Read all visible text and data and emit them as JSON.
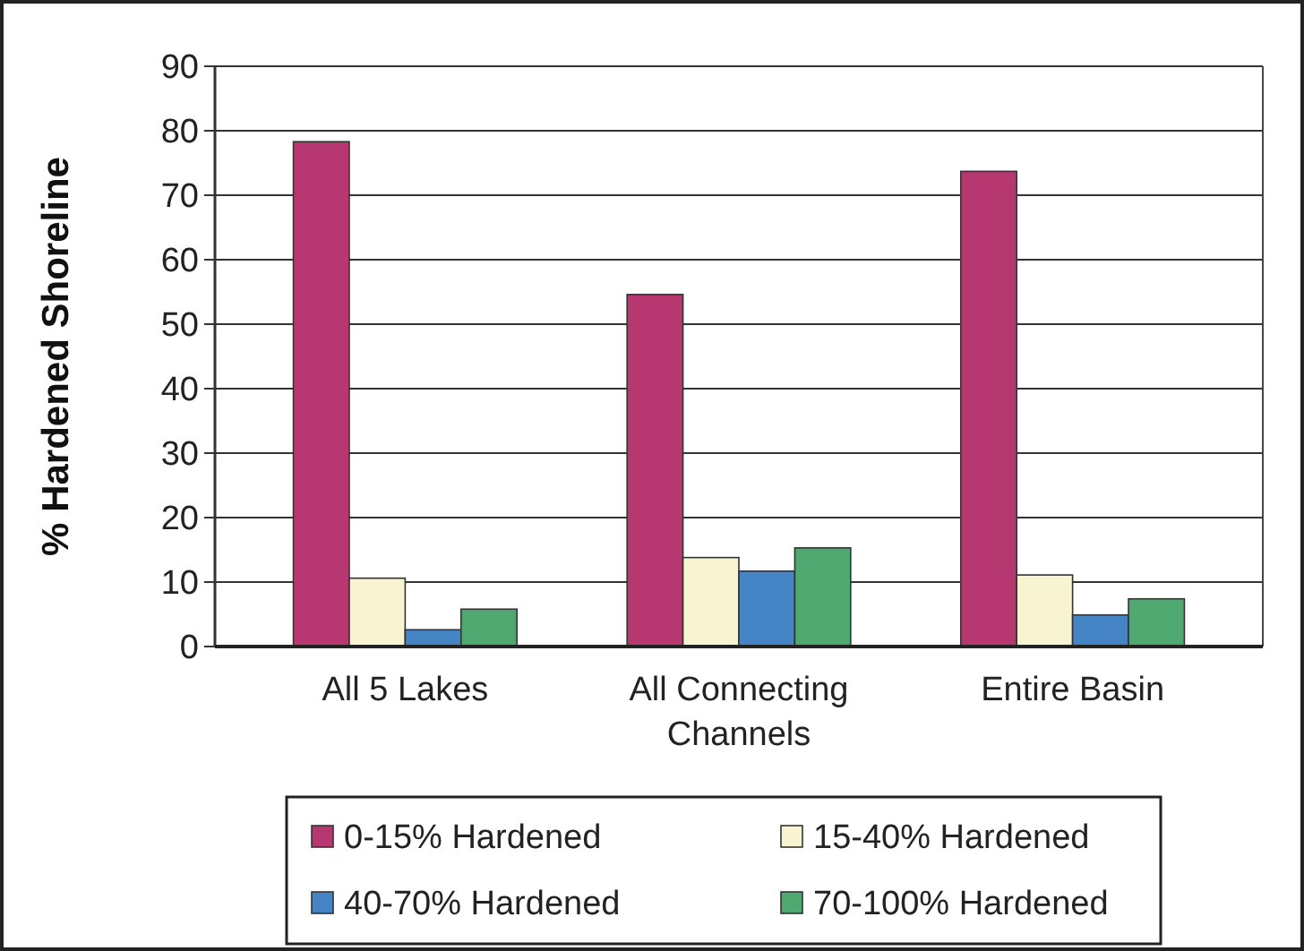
{
  "chart_data": {
    "type": "bar",
    "ylabel": "% Hardened Shoreline",
    "categories": [
      "All 5 Lakes",
      "All Connecting Channels",
      "Entire Basin"
    ],
    "series": [
      {
        "name": "0-15% Hardened",
        "color": "#b73771",
        "values": [
          78.3,
          54.6,
          73.7
        ]
      },
      {
        "name": "15-40% Hardened",
        "color": "#f8f3d0",
        "values": [
          10.6,
          13.8,
          11.1
        ]
      },
      {
        "name": "40-70% Hardened",
        "color": "#4585c6",
        "values": [
          2.6,
          11.7,
          4.9
        ]
      },
      {
        "name": "70-100% Hardened",
        "color": "#4fa870",
        "values": [
          5.8,
          15.3,
          7.4
        ]
      }
    ],
    "ylim": [
      0,
      90
    ],
    "yticks": [
      0,
      10,
      20,
      30,
      40,
      50,
      60,
      70,
      80,
      90
    ],
    "grid": "y",
    "legend": "bottom"
  }
}
